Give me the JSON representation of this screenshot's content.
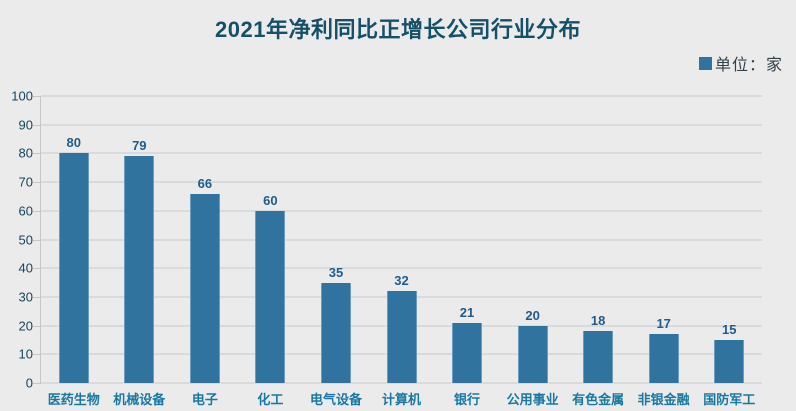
{
  "chart_data": {
    "type": "bar",
    "title": "2021年净利同比正增长公司行业分布",
    "legend": "单位：家",
    "legend_position": "top-right",
    "categories": [
      "医药生物",
      "机械设备",
      "电子",
      "化工",
      "电气设备",
      "计算机",
      "银行",
      "公用事业",
      "有色金属",
      "非银金融",
      "国防军工"
    ],
    "values": [
      80,
      79,
      66,
      60,
      35,
      32,
      21,
      20,
      18,
      17,
      15
    ],
    "xlabel": "",
    "ylabel": "",
    "ylim": [
      0,
      100
    ],
    "yticks": [
      0,
      10,
      20,
      30,
      40,
      50,
      60,
      70,
      80,
      90,
      100
    ],
    "grid": true,
    "colors": {
      "background": "#ebebeb",
      "bar_fill": "#2f739e",
      "bar_edge": "#6d9cbc",
      "title": "#155068",
      "value_label": "#1e5c8d",
      "category_label": "#1878a3",
      "ytick_label": "#17455f",
      "gridline": "#dadada",
      "axis_line": "#c6c6c6"
    }
  }
}
